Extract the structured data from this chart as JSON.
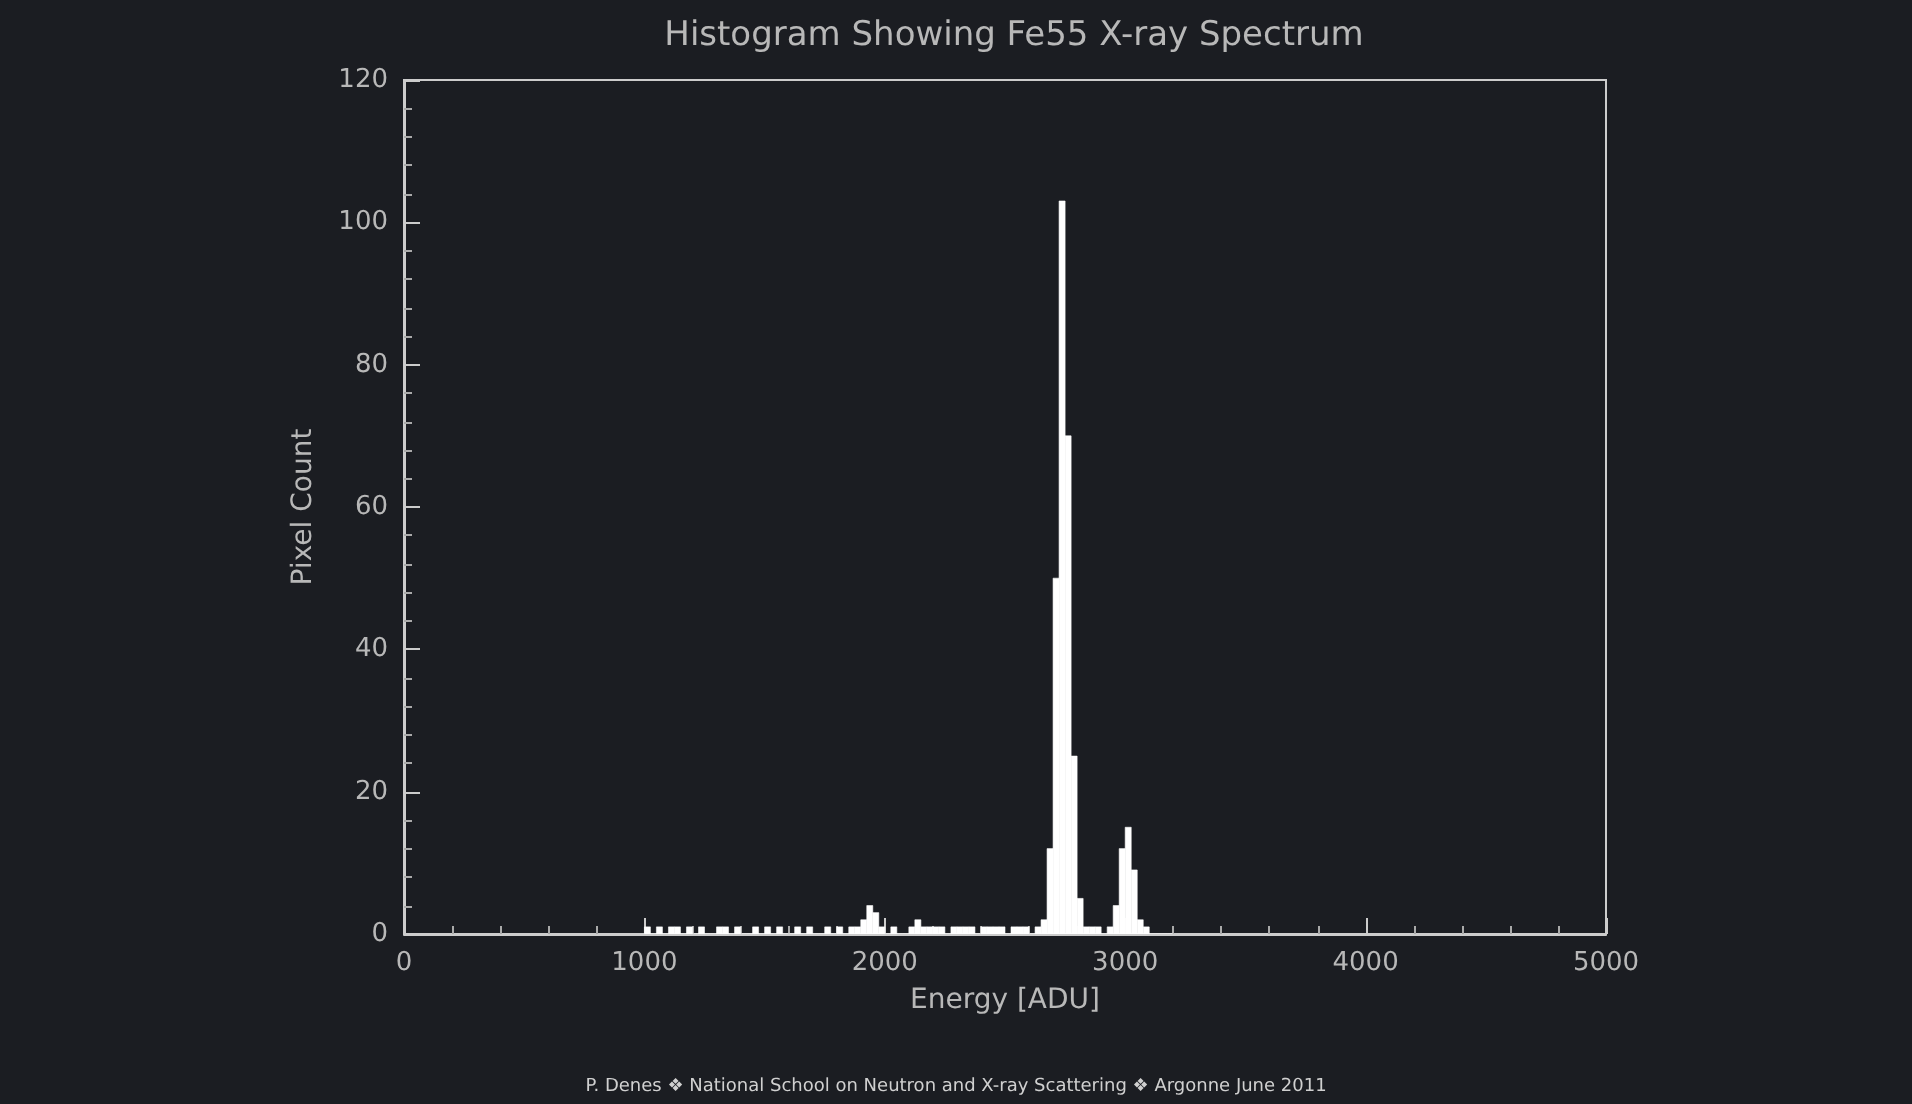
{
  "chart_data": {
    "type": "histogram",
    "title": "Histogram Showing Fe55 X-ray Spectrum",
    "xlabel": "Energy [ADU]",
    "ylabel": "Pixel Count",
    "annotations": [
      "P. Denes ❖ National School on Neutron and X-ray Scattering ❖ Argonne June 2011"
    ],
    "color": "#ffffff",
    "bins": [
      1000,
      1025,
      1050,
      1075,
      1100,
      1125,
      1150,
      1175,
      1200,
      1225,
      1250,
      1275,
      1300,
      1325,
      1350,
      1375,
      1400,
      1425,
      1450,
      1475,
      1500,
      1525,
      1550,
      1575,
      1600,
      1625,
      1650,
      1675,
      1700,
      1725,
      1750,
      1775,
      1800,
      1825,
      1850,
      1875,
      1900,
      1925,
      1950,
      1975,
      2000,
      2025,
      2050,
      2075,
      2100,
      2125,
      2150,
      2175,
      2200,
      2225,
      2250,
      2275,
      2300,
      2325,
      2350,
      2375,
      2400,
      2425,
      2450,
      2475,
      2500,
      2525,
      2550,
      2575,
      2600,
      2625,
      2650,
      2675,
      2700,
      2725,
      2750,
      2775,
      2800,
      2825,
      2850,
      2875,
      2900,
      2925,
      2950,
      2975,
      3000,
      3025,
      3050,
      3075,
      3100,
      3125,
      3150,
      3175,
      3200
    ],
    "values": [
      1,
      0,
      1,
      0,
      1,
      1,
      0,
      1,
      0,
      1,
      0,
      0,
      1,
      1,
      0,
      1,
      0,
      0,
      1,
      0,
      1,
      0,
      1,
      0,
      0,
      1,
      0,
      1,
      0,
      0,
      1,
      0,
      1,
      0,
      1,
      1,
      2,
      4,
      3,
      1,
      0,
      1,
      0,
      0,
      1,
      2,
      1,
      1,
      1,
      1,
      0,
      1,
      1,
      1,
      1,
      0,
      1,
      1,
      1,
      1,
      0,
      1,
      1,
      1,
      0,
      1,
      2,
      12,
      50,
      103,
      70,
      25,
      5,
      1,
      1,
      1,
      0,
      1,
      4,
      12,
      15,
      9,
      2,
      1,
      0,
      0,
      0,
      0
    ],
    "xlim": [
      0,
      5000
    ],
    "xticks": [
      0,
      1000,
      2000,
      3000,
      4000,
      5000
    ],
    "ylim": [
      0,
      120
    ],
    "yticks": [
      0,
      20,
      40,
      60,
      80,
      100,
      120
    ],
    "grid": false
  }
}
